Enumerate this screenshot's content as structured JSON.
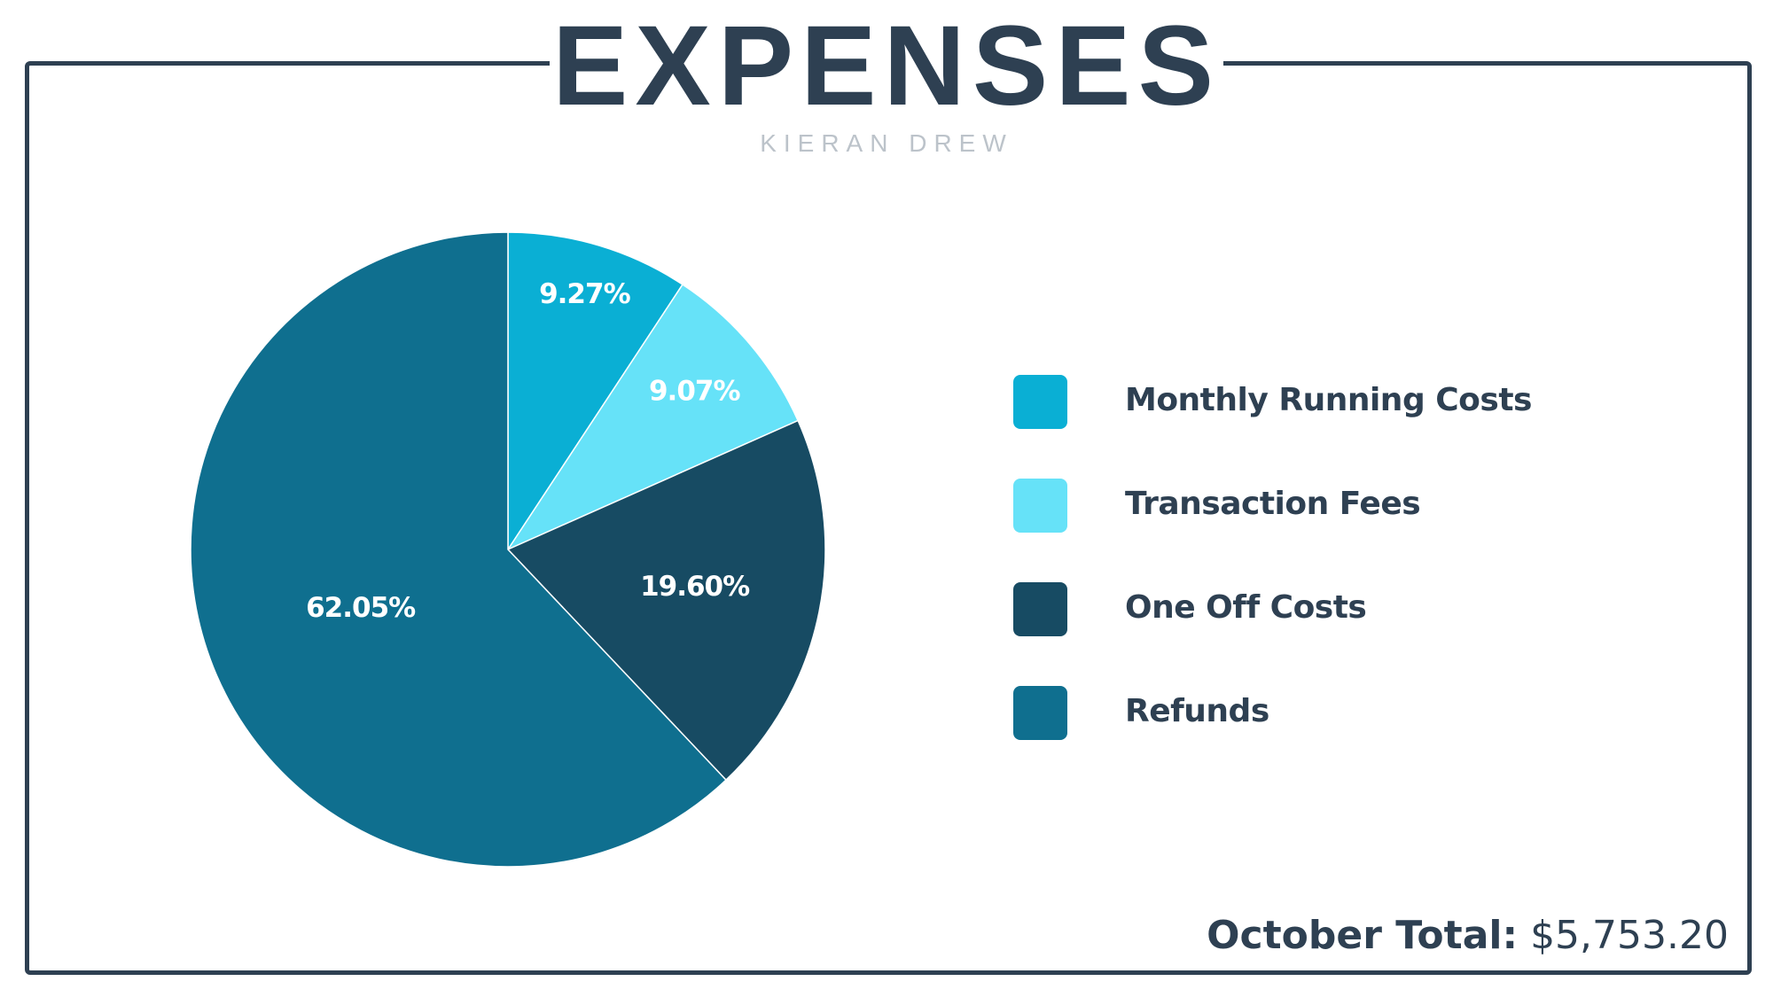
{
  "chart_data": {
    "type": "pie",
    "title": "EXPENSES",
    "subtitle": "KIERAN DREW",
    "categories": [
      "Monthly Running Costs",
      "Transaction Fees",
      "One Off Costs",
      "Refunds"
    ],
    "values": [
      9.27,
      9.07,
      19.6,
      62.05
    ],
    "value_labels": [
      "9.27%",
      "9.07%",
      "19.60%",
      "62.05%"
    ],
    "colors": [
      "#0AAFD4",
      "#66E2F8",
      "#174B63",
      "#0F6F8F"
    ],
    "start_angle": "top",
    "direction": "clockwise",
    "legend_placement": "right"
  },
  "footer": {
    "total_label": "October Total:",
    "total_value": "$5,753.20"
  }
}
